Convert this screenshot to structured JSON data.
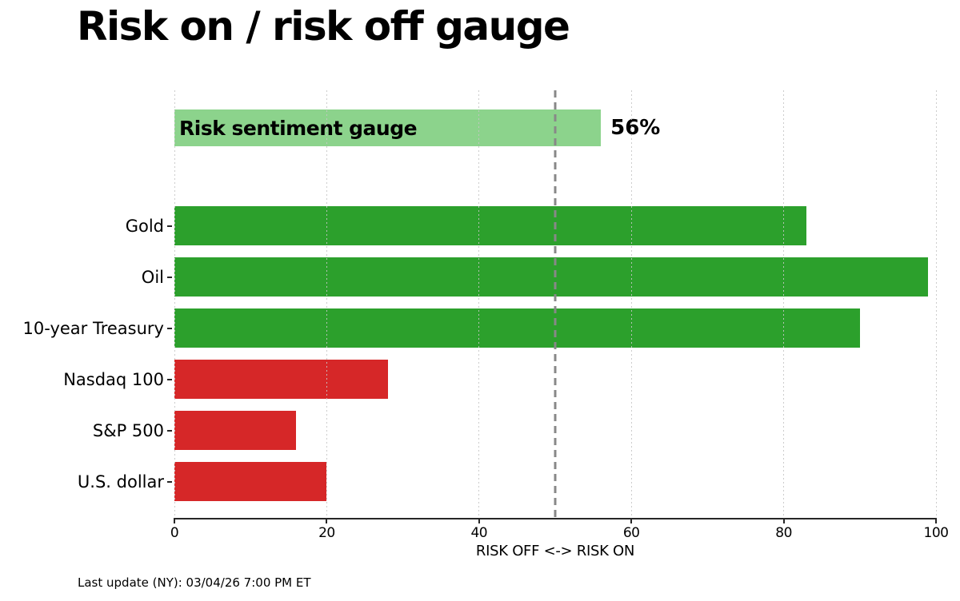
{
  "title": "Risk on / risk off gauge",
  "footer": "Last update (NY): 03/04/26 7:00 PM ET",
  "chart_data": {
    "type": "bar",
    "orientation": "horizontal",
    "title": "Risk on / risk off gauge",
    "xlabel": "RISK OFF <-> RISK ON",
    "xlim": [
      0,
      100
    ],
    "xticks": [
      "0",
      "20",
      "40",
      "60",
      "80",
      "100"
    ],
    "xtick_values": [
      0,
      20,
      40,
      60,
      80,
      100
    ],
    "grid": "vertical dotted gridlines at each xtick",
    "threshold_value": 50,
    "gauge": {
      "label": "Risk sentiment gauge",
      "value": 56,
      "value_label": "56%",
      "color": "#8CD38C"
    },
    "categories": [
      "Gold",
      "Oil",
      "10-year Treasury",
      "Nasdaq 100",
      "S&P 500",
      "U.S. dollar"
    ],
    "values": [
      83,
      99,
      90,
      28,
      16,
      20
    ],
    "bar_colors": [
      "#2CA02C",
      "#2CA02C",
      "#2CA02C",
      "#D62728",
      "#D62728",
      "#D62728"
    ],
    "colors": {
      "risk_on_green": "#2CA02C",
      "risk_off_red": "#D62728",
      "gauge_light_green": "#8CD38C",
      "threshold_dash_gray": "#888888",
      "gridline_gray": "#C6C6C6",
      "axis_spine": "#262626"
    }
  }
}
